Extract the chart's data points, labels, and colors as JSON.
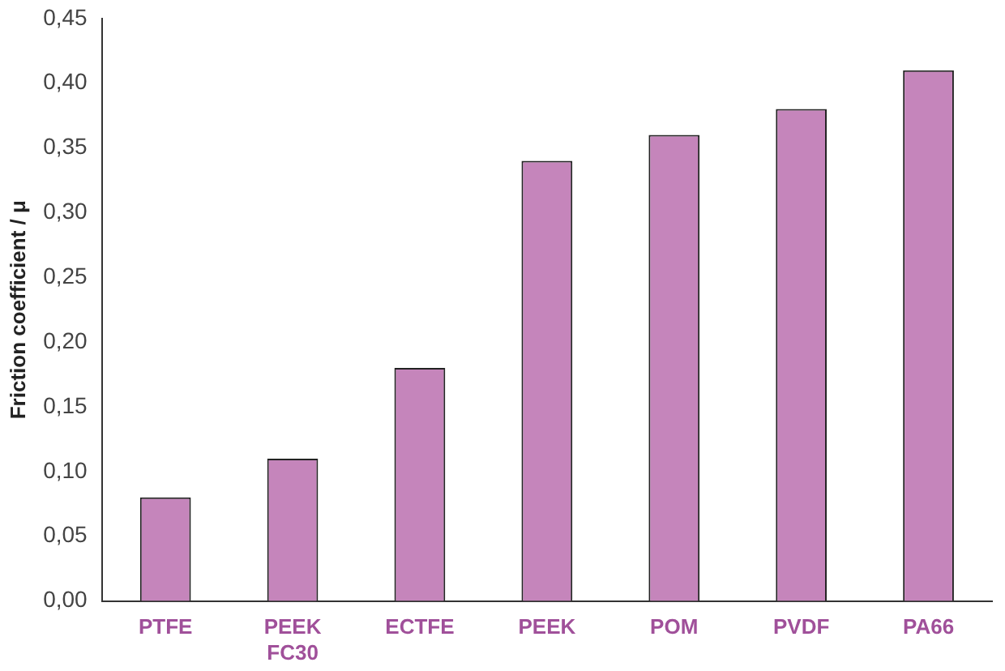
{
  "chart_data": {
    "type": "bar",
    "ylabel": "Friction coefficient / μ",
    "categories": [
      "PTFE",
      "PEEK FC30",
      "ECTFE",
      "PEEK",
      "POM",
      "PVDF",
      "PA66"
    ],
    "values": [
      0.08,
      0.11,
      0.18,
      0.34,
      0.36,
      0.38,
      0.41
    ],
    "color": "#c585bb",
    "ylim": [
      0,
      0.45
    ],
    "yticks": [
      {
        "value": 0,
        "label": "0,00"
      },
      {
        "value": 0.05,
        "label": "0,05"
      },
      {
        "value": 0.1,
        "label": "0,10"
      },
      {
        "value": 0.15,
        "label": "0,15"
      },
      {
        "value": 0.2,
        "label": "0,20"
      },
      {
        "value": 0.25,
        "label": "0,25"
      },
      {
        "value": 0.3,
        "label": "0,30"
      },
      {
        "value": 0.35,
        "label": "0,35"
      },
      {
        "value": 0.4,
        "label": "0,40"
      },
      {
        "value": 0.45,
        "label": "0,45"
      }
    ],
    "grid": false,
    "legend": false
  }
}
